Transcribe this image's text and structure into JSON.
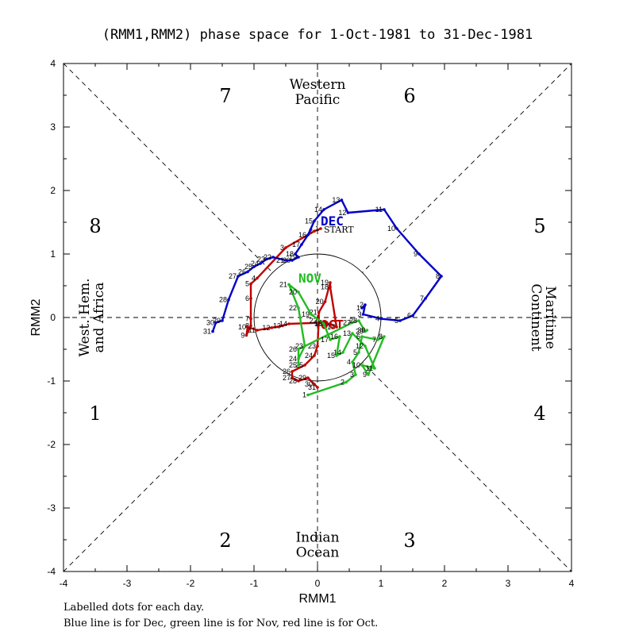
{
  "chart_data": {
    "type": "line",
    "title": "(RMM1,RMM2) phase space for  1-Oct-1981 to 31-Dec-1981",
    "xlabel": "RMM1",
    "ylabel": "RMM2",
    "xlim": [
      -4,
      4
    ],
    "ylim": [
      -4,
      4
    ],
    "x_ticks": [
      "-4",
      "-3",
      "-2",
      "-1",
      "0",
      "1",
      "2",
      "3",
      "4"
    ],
    "y_ticks": [
      "-4",
      "-3",
      "-2",
      "-1",
      "0",
      "1",
      "2",
      "3",
      "4"
    ],
    "unit_circle_radius": 1,
    "phase_numbers": [
      {
        "phase": "1",
        "x": -3.5,
        "y": -1.5
      },
      {
        "phase": "2",
        "x": -1.45,
        "y": -3.5
      },
      {
        "phase": "3",
        "x": 1.45,
        "y": -3.5
      },
      {
        "phase": "4",
        "x": 3.5,
        "y": -1.5
      },
      {
        "phase": "5",
        "x": 3.5,
        "y": 1.45
      },
      {
        "phase": "6",
        "x": 1.45,
        "y": 3.5
      },
      {
        "phase": "7",
        "x": -1.45,
        "y": 3.5
      },
      {
        "phase": "8",
        "x": -3.5,
        "y": 1.45
      }
    ],
    "region_labels": {
      "top": [
        "Western",
        "Pacific"
      ],
      "bottom": [
        "Indian",
        "Ocean"
      ],
      "left": [
        "West. Hem.",
        "and Africa"
      ],
      "right": [
        "Maritime",
        "Continent"
      ]
    },
    "start_label": "START",
    "start_point": [
      0.05,
      1.4
    ],
    "series": [
      {
        "name": "OCT",
        "color": "#c00000",
        "month_label": {
          "text": "OCT",
          "x": 0.05,
          "y": -0.18
        },
        "points": [
          [
            0.05,
            1.4
          ],
          [
            -0.05,
            1.36
          ],
          [
            -0.5,
            1.1
          ],
          [
            -0.95,
            0.62
          ],
          [
            -1.05,
            0.53
          ],
          [
            -1.05,
            0.3
          ],
          [
            -1.05,
            -0.02
          ],
          [
            -1.05,
            -0.13
          ],
          [
            -1.12,
            -0.28
          ],
          [
            -1.1,
            -0.15
          ],
          [
            -0.95,
            -0.2
          ],
          [
            -0.72,
            -0.16
          ],
          [
            -0.55,
            -0.13
          ],
          [
            -0.45,
            -0.1
          ],
          [
            0.1,
            -0.08
          ],
          [
            0.2,
            -0.1
          ],
          [
            0.3,
            -0.15
          ],
          [
            0.2,
            0.48
          ],
          [
            0.2,
            0.55
          ],
          [
            0.12,
            0.25
          ],
          [
            0.02,
            0.08
          ],
          [
            0.02,
            -0.05
          ],
          [
            0.0,
            -0.45
          ],
          [
            -0.05,
            -0.6
          ],
          [
            -0.2,
            -0.75
          ],
          [
            -0.4,
            -0.85
          ],
          [
            -0.4,
            -0.95
          ],
          [
            -0.3,
            -1.0
          ],
          [
            -0.15,
            -0.95
          ],
          [
            -0.05,
            -1.05
          ],
          [
            0.0,
            -1.1
          ]
        ]
      },
      {
        "name": "NOV",
        "color": "#22bb22",
        "month_label": {
          "text": "NOV",
          "x": -0.3,
          "y": 0.55
        },
        "points": [
          [
            -0.15,
            -1.22
          ],
          [
            0.45,
            -1.02
          ],
          [
            0.6,
            -0.9
          ],
          [
            0.55,
            -0.7
          ],
          [
            0.65,
            -0.55
          ],
          [
            0.7,
            -0.3
          ],
          [
            0.95,
            -0.35
          ],
          [
            1.05,
            -0.3
          ],
          [
            0.8,
            -0.9
          ],
          [
            0.7,
            -0.75
          ],
          [
            0.9,
            -0.8
          ],
          [
            0.75,
            -0.45
          ],
          [
            0.55,
            -0.25
          ],
          [
            0.4,
            -0.55
          ],
          [
            0.3,
            -0.6
          ],
          [
            0.35,
            -0.3
          ],
          [
            0.2,
            -0.35
          ],
          [
            0.1,
            -0.1
          ],
          [
            -0.1,
            0.05
          ],
          [
            -0.3,
            0.4
          ],
          [
            -0.45,
            0.52
          ],
          [
            -0.3,
            0.15
          ],
          [
            -0.2,
            -0.45
          ],
          [
            -0.3,
            -0.65
          ],
          [
            -0.3,
            -0.75
          ],
          [
            -0.3,
            -0.5
          ],
          [
            0.55,
            -0.08
          ],
          [
            0.65,
            -0.05
          ],
          [
            0.75,
            -0.22
          ],
          [
            0.78,
            -0.2
          ]
        ]
      },
      {
        "name": "DEC",
        "color": "#0000c8",
        "month_label": {
          "text": "DEC",
          "x": 0.05,
          "y": 1.45
        },
        "points": [
          [
            0.7,
            0.15
          ],
          [
            0.75,
            0.2
          ],
          [
            0.72,
            0.05
          ],
          [
            1.0,
            -0.02
          ],
          [
            1.3,
            -0.05
          ],
          [
            1.5,
            0.03
          ],
          [
            1.7,
            0.3
          ],
          [
            1.95,
            0.65
          ],
          [
            1.6,
            1.0
          ],
          [
            1.25,
            1.4
          ],
          [
            1.05,
            1.7
          ],
          [
            0.48,
            1.65
          ],
          [
            0.38,
            1.85
          ],
          [
            0.1,
            1.7
          ],
          [
            -0.05,
            1.52
          ],
          [
            -0.15,
            1.3
          ],
          [
            -0.25,
            1.15
          ],
          [
            -0.35,
            1.0
          ],
          [
            -0.3,
            0.95
          ],
          [
            -0.4,
            0.9
          ],
          [
            -0.5,
            0.9
          ],
          [
            -0.7,
            0.95
          ],
          [
            -0.8,
            0.92
          ],
          [
            -0.9,
            0.85
          ],
          [
            -1.0,
            0.8
          ],
          [
            -1.1,
            0.72
          ],
          [
            -1.25,
            0.65
          ],
          [
            -1.4,
            0.28
          ],
          [
            -1.5,
            -0.05
          ],
          [
            -1.6,
            -0.08
          ],
          [
            -1.65,
            -0.22
          ]
        ]
      }
    ],
    "footnotes": [
      "Labelled dots for each day.",
      "Blue line is for Dec, green line is for Nov, red line is for Oct."
    ]
  }
}
